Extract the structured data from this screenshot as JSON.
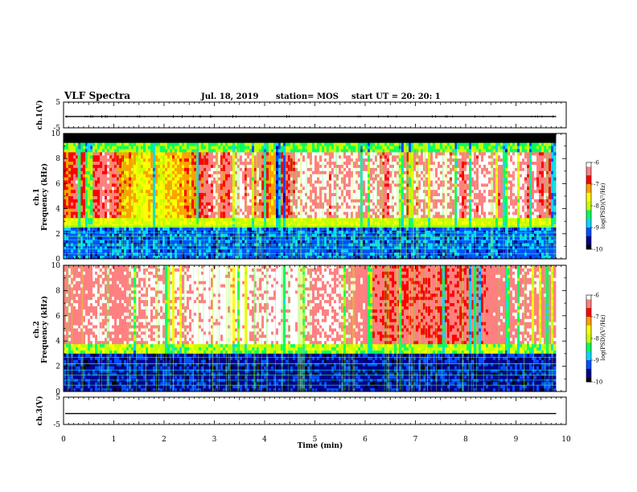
{
  "header": {
    "title": "VLF Spectra",
    "date": "Jul. 18, 2019",
    "station": "station= MOS",
    "start_ut": "start UT =  20: 20: 1"
  },
  "chart_data": {
    "type": "heatmap",
    "xlabel": "Time (min)",
    "xlim": [
      0,
      10
    ],
    "x_ticks": [
      "0",
      "1",
      "2",
      "3",
      "4",
      "5",
      "6",
      "7",
      "8",
      "9",
      "10"
    ],
    "panels": [
      {
        "id": "ch1-waveform",
        "type": "line",
        "ylabel": "ch.1(V)",
        "ylim": [
          -5,
          5
        ],
        "y_ticks": [
          "5",
          "-5"
        ],
        "baseline": -0.6,
        "data_end_min": 9.8
      },
      {
        "id": "ch1-spectrogram",
        "type": "heatmap",
        "ylabel_line1": "ch.1",
        "ylabel_line2": "Frequency (kHz)",
        "ylim": [
          0,
          10
        ],
        "y_ticks": [
          "0",
          "2",
          "4",
          "6",
          "8",
          "10"
        ],
        "data_end_min": 9.8,
        "colorbar": {
          "label": "log(PSD)(V²/Hz)",
          "range": [
            -10,
            -6
          ],
          "ticks": [
            "-6",
            "-7",
            "-8",
            "-9",
            "-10"
          ]
        }
      },
      {
        "id": "ch2-spectrogram",
        "type": "heatmap",
        "ylabel_line1": "ch.2",
        "ylabel_line2": "Frequency (kHz)",
        "ylim": [
          0,
          10
        ],
        "y_ticks": [
          "0",
          "2",
          "4",
          "6",
          "8",
          "10"
        ],
        "data_end_min": 9.8,
        "colorbar": {
          "label": "log(PSD)(V²/Hz)",
          "range": [
            -10,
            -6
          ],
          "ticks": [
            "-6",
            "-7",
            "-8",
            "-9",
            "-10"
          ]
        }
      },
      {
        "id": "ch3-waveform",
        "type": "line",
        "ylabel": "ch.3(V)",
        "ylim": [
          -5,
          5
        ],
        "y_ticks": [
          "5",
          "-5"
        ],
        "baseline": -1.0,
        "data_end_min": 9.8
      }
    ],
    "colors": {
      "scale": [
        "#000000",
        "#00008b",
        "#0050ff",
        "#00d8ff",
        "#00ff60",
        "#c8ff00",
        "#ffff00",
        "#ffa000",
        "#ff0000",
        "#ff8080",
        "#ffffff"
      ]
    }
  }
}
